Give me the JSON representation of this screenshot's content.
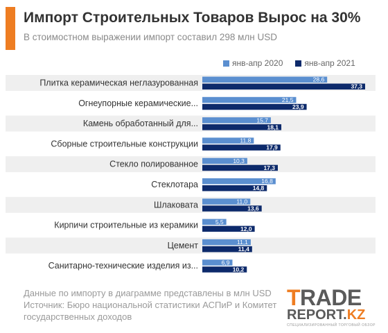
{
  "header": {
    "title": "Импорт Строительных Товаров Вырос на 30%",
    "subtitle": "В стоимостном выражении импорт составил 298 млн USD"
  },
  "legend": [
    {
      "label": "янв-апр 2020",
      "color": "#5b8fd0"
    },
    {
      "label": "янв-апр 2021",
      "color": "#0d2a6b"
    }
  ],
  "chart_data": {
    "type": "bar",
    "orientation": "horizontal",
    "categories": [
      "Плитка керамическая неглазурованная",
      "Огнеупорные керамические...",
      "Камень обработанный для...",
      "Сборные строительные конструкции",
      "Стекло полированное",
      "Стеклотара",
      "Шлаковата",
      "Кирпичи строительные из керамики",
      "Цемент",
      "Санитарно-технические изделия из..."
    ],
    "series": [
      {
        "name": "янв-апр 2020",
        "values": [
          28.6,
          21.5,
          15.7,
          11.8,
          10.3,
          16.8,
          11.0,
          5.5,
          11.1,
          6.9
        ],
        "labels": [
          "28,6",
          "21,5",
          "15,7",
          "11,8",
          "10,3",
          "16,8",
          "11,0",
          "5,5",
          "11,1",
          "6,9"
        ]
      },
      {
        "name": "янв-апр 2021",
        "values": [
          37.3,
          23.9,
          18.1,
          17.9,
          17.3,
          14.8,
          13.6,
          12.0,
          11.4,
          10.2
        ],
        "labels": [
          "37,3",
          "23,9",
          "18,1",
          "17,9",
          "17,3",
          "14,8",
          "13,6",
          "12,0",
          "11,4",
          "10,2"
        ]
      }
    ],
    "xlim": [
      0,
      40
    ],
    "grid": false,
    "legend_position": "top-right"
  },
  "footnote": {
    "line1": "Данные по импорту в диаграмме представлены в млн USD",
    "line2": "Источник: Бюро национальной статистики АСПиР и Комитет",
    "line3": "государственных доходов"
  },
  "logo": {
    "main_first": "T",
    "main_rest": "RADE",
    "sub": "REPORT.",
    "sub_accent": "KZ",
    "tagline": "СПЕЦИАЛИЗИРОВАННЫЙ ТОРГОВЫЙ ОБЗОР"
  }
}
